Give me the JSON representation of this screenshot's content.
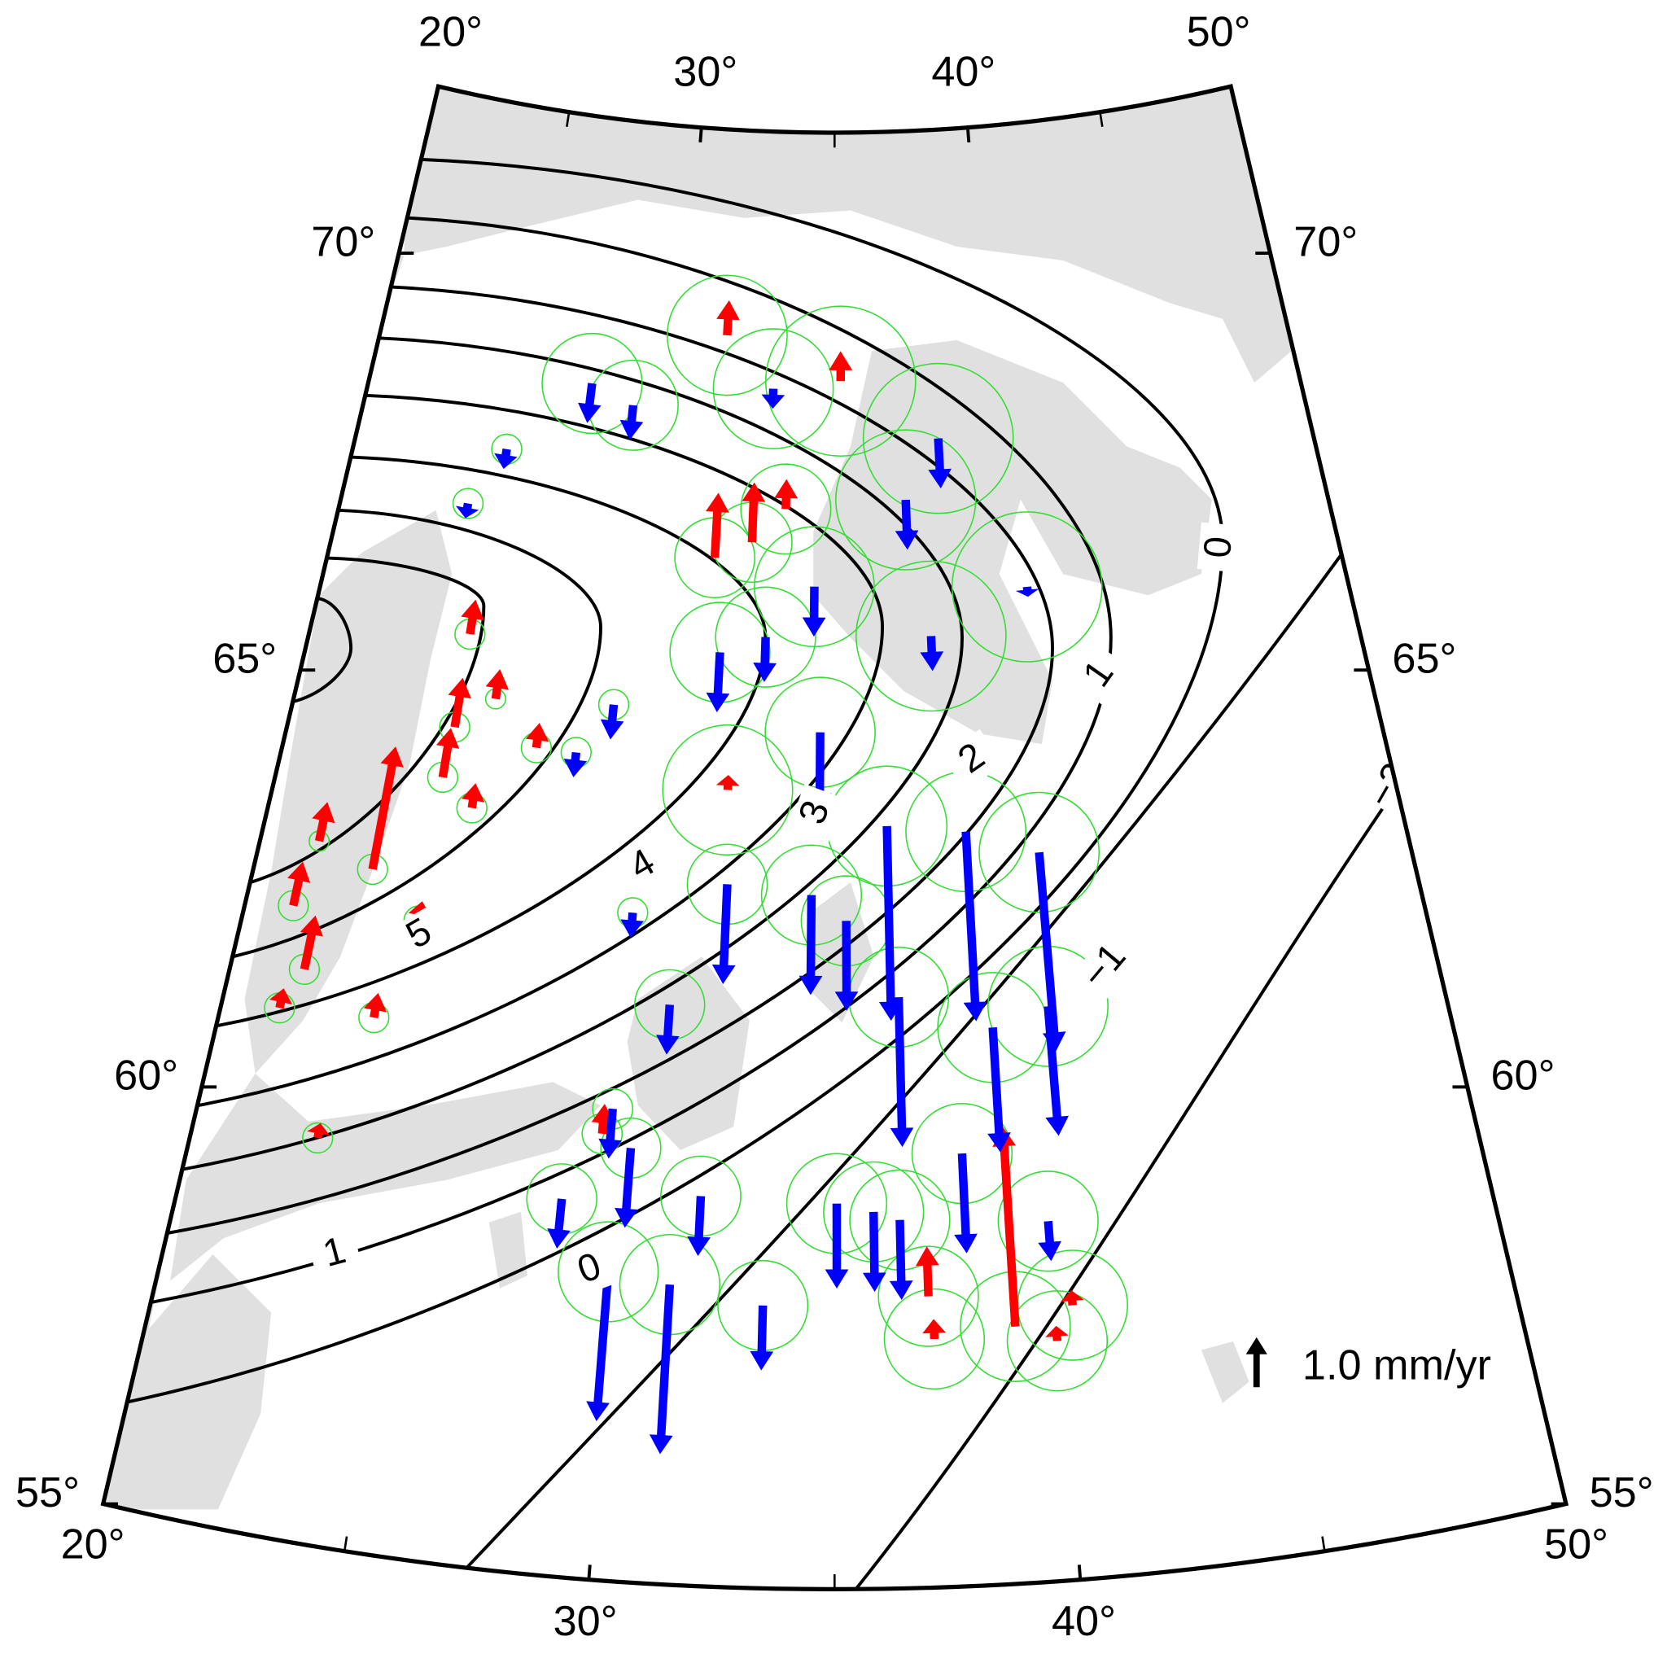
{
  "chart_data": {
    "type": "map",
    "projection": "conic",
    "lonlim": [
      20,
      50
    ],
    "latlim": [
      55,
      72
    ],
    "lon_ticks": [
      {
        "value": 20,
        "label": "20°"
      },
      {
        "value": 30,
        "label": "30°"
      },
      {
        "value": 40,
        "label": "40°"
      },
      {
        "value": 50,
        "label": "50°"
      }
    ],
    "lon_minor_ticks": [
      25,
      35,
      45
    ],
    "lat_ticks": [
      {
        "value": 55,
        "label": "55°"
      },
      {
        "value": 60,
        "label": "60°"
      },
      {
        "value": 65,
        "label": "65°"
      },
      {
        "value": 70,
        "label": "70°"
      }
    ],
    "contours": [
      {
        "level": 5
      },
      {
        "level": 4
      },
      {
        "level": 3
      },
      {
        "level": 2
      },
      {
        "level": 1
      },
      {
        "level": 0
      },
      {
        "level": -1,
        "label": "−1"
      },
      {
        "level": -2,
        "label": "−2"
      }
    ],
    "up_color": "#ff0000",
    "down_color": "#0000ff",
    "error_color": "#33dd33",
    "contour_color": "#000000",
    "water_color": "#e0e0e0",
    "stations": [
      {
        "lon": 31.4,
        "lat": 69.6,
        "value": 0.7,
        "error": 1.2
      },
      {
        "lon": 35.2,
        "lat": 69.1,
        "value": 0.6,
        "error": 1.5
      },
      {
        "lon": 32.5,
        "lat": 67.2,
        "value": 1.2,
        "error": 0.8
      },
      {
        "lon": 31.4,
        "lat": 67.0,
        "value": 1.3,
        "error": 0.8
      },
      {
        "lon": 33.5,
        "lat": 67.6,
        "value": 0.6,
        "error": 0.9
      },
      {
        "lon": 23.0,
        "lat": 62.9,
        "value": 2.5,
        "error": 0.3
      },
      {
        "lon": 21.5,
        "lat": 63.1,
        "value": 0.8,
        "error": 0.2
      },
      {
        "lon": 24.4,
        "lat": 64.1,
        "value": 1.0,
        "error": 0.3
      },
      {
        "lon": 24.5,
        "lat": 64.7,
        "value": 1.0,
        "error": 0.3
      },
      {
        "lon": 25.5,
        "lat": 65.1,
        "value": 0.6,
        "error": 0.2
      },
      {
        "lon": 24.5,
        "lat": 65.8,
        "value": 0.7,
        "error": 0.3
      },
      {
        "lon": 21.8,
        "lat": 61.6,
        "value": 1.1,
        "error": 0.3
      },
      {
        "lon": 21.2,
        "lat": 62.3,
        "value": 0.9,
        "error": 0.3
      },
      {
        "lon": 21.4,
        "lat": 61.1,
        "value": 0.4,
        "error": 0.3
      },
      {
        "lon": 26.8,
        "lat": 64.6,
        "value": 0.5,
        "error": 0.3
      },
      {
        "lon": 25.3,
        "lat": 63.8,
        "value": 0.5,
        "error": 0.3
      },
      {
        "lon": 23.7,
        "lat": 61.2,
        "value": 0.5,
        "error": 0.3
      },
      {
        "lon": 24.4,
        "lat": 62.4,
        "value": 0.4,
        "error": 0.3
      },
      {
        "lon": 39.0,
        "lat": 58.0,
        "value": 4.0,
        "error": 1.1
      },
      {
        "lon": 37.1,
        "lat": 58.4,
        "value": 1.0,
        "error": 1.0
      },
      {
        "lon": 37.2,
        "lat": 57.9,
        "value": 0.4,
        "error": 1.0
      },
      {
        "lon": 40.3,
        "lat": 58.2,
        "value": 0.3,
        "error": 1.1
      },
      {
        "lon": 39.9,
        "lat": 57.8,
        "value": 0.3,
        "error": 1.0
      },
      {
        "lon": 32.1,
        "lat": 64.3,
        "value": 0.3,
        "error": 1.3
      },
      {
        "lon": 22.9,
        "lat": 59.7,
        "value": 0.3,
        "error": 0.3
      },
      {
        "lon": 29.5,
        "lat": 60.2,
        "value": 0.6,
        "error": 0.4
      },
      {
        "lon": 38.3,
        "lat": 68.4,
        "value": -1.0,
        "error": 1.5
      },
      {
        "lon": 37.2,
        "lat": 67.7,
        "value": -1.0,
        "error": 1.4
      },
      {
        "lon": 34.4,
        "lat": 66.7,
        "value": -1.0,
        "error": 1.2
      },
      {
        "lon": 37.8,
        "lat": 66.1,
        "value": -0.7,
        "error": 1.5
      },
      {
        "lon": 40.7,
        "lat": 66.6,
        "value": -0.2,
        "error": 1.5
      },
      {
        "lon": 33.0,
        "lat": 66.1,
        "value": -0.9,
        "error": 1.0
      },
      {
        "lon": 34.6,
        "lat": 65.0,
        "value": -1.6,
        "error": 1.1
      },
      {
        "lon": 32.2,
        "lat": 63.2,
        "value": -2.0,
        "error": 0.8
      },
      {
        "lon": 36.4,
        "lat": 63.9,
        "value": -3.9,
        "error": 1.2
      },
      {
        "lon": 38.5,
        "lat": 63.8,
        "value": -3.8,
        "error": 1.2
      },
      {
        "lon": 40.4,
        "lat": 63.5,
        "value": -4.0,
        "error": 1.2
      },
      {
        "lon": 35.3,
        "lat": 62.8,
        "value": -1.8,
        "error": 0.9
      },
      {
        "lon": 34.4,
        "lat": 63.1,
        "value": -2.0,
        "error": 1.0
      },
      {
        "lon": 31.3,
        "lat": 58.5,
        "value": -3.4,
        "error": 1.0
      },
      {
        "lon": 29.9,
        "lat": 58.6,
        "value": -3.0,
        "error": 1.0
      },
      {
        "lon": 28.7,
        "lat": 59.4,
        "value": -1.0,
        "error": 0.7
      },
      {
        "lon": 35.05,
        "lat": 59.5,
        "value": -1.7,
        "error": 1.0
      },
      {
        "lon": 35.9,
        "lat": 59.4,
        "value": -1.6,
        "error": 1.0
      },
      {
        "lon": 36.5,
        "lat": 59.3,
        "value": -1.6,
        "error": 1.0
      },
      {
        "lon": 36.6,
        "lat": 61.9,
        "value": -3.0,
        "error": 1.0
      },
      {
        "lon": 38.9,
        "lat": 61.5,
        "value": -2.5,
        "error": 1.1
      },
      {
        "lon": 40.3,
        "lat": 61.7,
        "value": -2.6,
        "error": 1.2
      },
      {
        "lon": 38.0,
        "lat": 60.05,
        "value": -2.0,
        "error": 1.0
      },
      {
        "lon": 28.5,
        "lat": 68.7,
        "value": -0.7,
        "error": 0.9
      },
      {
        "lon": 27.1,
        "lat": 68.9,
        "value": -0.8,
        "error": 1.0
      },
      {
        "lon": 33.0,
        "lat": 69.0,
        "value": -0.4,
        "error": 1.2
      },
      {
        "lon": 27.9,
        "lat": 64.6,
        "value": -0.5,
        "error": 0.3
      },
      {
        "lon": 29.8,
        "lat": 62.8,
        "value": -0.5,
        "error": 0.3
      },
      {
        "lon": 33.4,
        "lat": 58.3,
        "value": -1.3,
        "error": 0.9
      },
      {
        "lon": 31.9,
        "lat": 59.55,
        "value": -1.2,
        "error": 0.8
      },
      {
        "lon": 39.9,
        "lat": 59.2,
        "value": -0.8,
        "error": 1.0
      },
      {
        "lon": 30.2,
        "lat": 60.06,
        "value": -1.6,
        "error": 0.6
      },
      {
        "lon": 29.7,
        "lat": 60.5,
        "value": -1.0,
        "error": 0.4
      },
      {
        "lon": 30.9,
        "lat": 61.76,
        "value": -1.0,
        "error": 0.7
      },
      {
        "lon": 23.8,
        "lat": 67.3,
        "value": -0.3,
        "error": 0.3
      },
      {
        "lon": 24.7,
        "lat": 68.0,
        "value": -0.4,
        "error": 0.3
      },
      {
        "lon": 28.8,
        "lat": 65.2,
        "value": -0.7,
        "error": 0.3
      },
      {
        "lon": 31.7,
        "lat": 65.9,
        "value": -1.2,
        "error": 1.0
      }
    ],
    "scale_arrow": {
      "value": 1.0,
      "label": "1.0 mm/yr"
    }
  }
}
